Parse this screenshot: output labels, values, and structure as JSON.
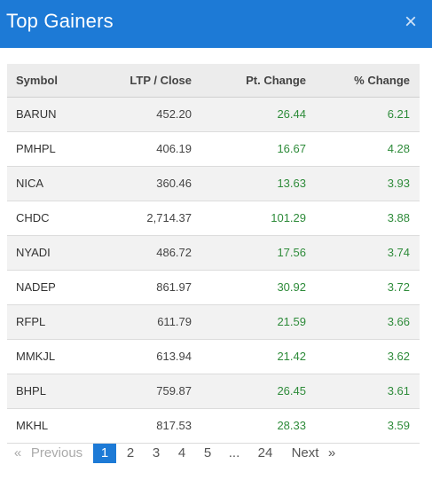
{
  "title": "Top Gainers",
  "close_glyph": "×",
  "columns": [
    "Symbol",
    "LTP / Close",
    "Pt. Change",
    "% Change"
  ],
  "rows": [
    {
      "symbol": "BARUN",
      "ltp": "452.20",
      "pt": "26.44",
      "pct": "6.21"
    },
    {
      "symbol": "PMHPL",
      "ltp": "406.19",
      "pt": "16.67",
      "pct": "4.28"
    },
    {
      "symbol": "NICA",
      "ltp": "360.46",
      "pt": "13.63",
      "pct": "3.93"
    },
    {
      "symbol": "CHDC",
      "ltp": "2,714.37",
      "pt": "101.29",
      "pct": "3.88"
    },
    {
      "symbol": "NYADI",
      "ltp": "486.72",
      "pt": "17.56",
      "pct": "3.74"
    },
    {
      "symbol": "NADEP",
      "ltp": "861.97",
      "pt": "30.92",
      "pct": "3.72"
    },
    {
      "symbol": "RFPL",
      "ltp": "611.79",
      "pt": "21.59",
      "pct": "3.66"
    },
    {
      "symbol": "MMKJL",
      "ltp": "613.94",
      "pt": "21.42",
      "pct": "3.62"
    },
    {
      "symbol": "BHPL",
      "ltp": "759.87",
      "pt": "26.45",
      "pct": "3.61"
    },
    {
      "symbol": "MKHL",
      "ltp": "817.53",
      "pt": "28.33",
      "pct": "3.59"
    }
  ],
  "pagination": {
    "first": "«",
    "previous": "Previous",
    "pages": [
      "1",
      "2",
      "3",
      "4",
      "5"
    ],
    "ellipsis": "...",
    "last_page": "24",
    "next": "Next",
    "end": "»",
    "current": "1"
  },
  "colors": {
    "header": "#1d7ad6",
    "positive": "#2e8b3a"
  }
}
